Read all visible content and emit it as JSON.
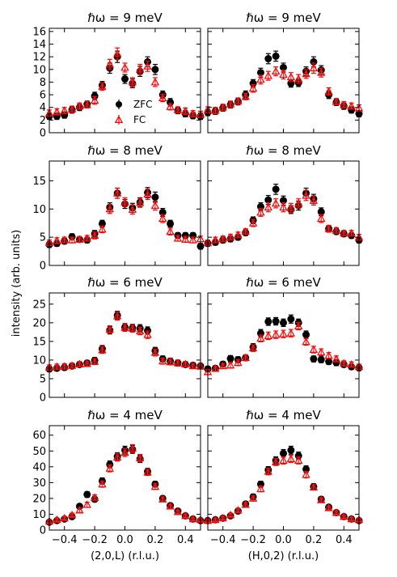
{
  "chart_data": {
    "type": "scatter",
    "ylabel": "intensity (arb. units)",
    "legend": {
      "placement": "center-left (top-left panel)",
      "entries": [
        "ZFC",
        "FC"
      ]
    },
    "colors": {
      "ZFC": "#000000",
      "FC": "#ff0000"
    },
    "x": [
      -0.5,
      -0.45,
      -0.4,
      -0.35,
      -0.3,
      -0.25,
      -0.2,
      -0.15,
      -0.1,
      -0.05,
      0.0,
      0.05,
      0.1,
      0.15,
      0.2,
      0.25,
      0.3,
      0.35,
      0.4,
      0.45,
      0.5
    ],
    "xlim": [
      -0.5,
      0.5
    ],
    "xticks": [
      -0.4,
      -0.2,
      0.0,
      0.2,
      0.4
    ],
    "xticklabels": [
      "−0.4",
      "−0.2",
      "0.0",
      "0.2",
      "0.4"
    ],
    "panels": [
      {
        "id": "9L",
        "title": "ℏω = 9 meV",
        "ylim": [
          0,
          16.5
        ],
        "yticks": [
          0,
          2,
          4,
          6,
          8,
          10,
          12,
          14,
          16
        ],
        "yticklabels": [
          "0",
          "2",
          "4",
          "6",
          "8",
          "10",
          "12",
          "14",
          "16"
        ],
        "show_yticklabels": true,
        "xlabel": "",
        "legend": true,
        "series": [
          {
            "name": "ZFC",
            "values": [
              2.6,
              2.6,
              2.8,
              3.6,
              4.0,
              4.5,
              5.8,
              7.5,
              10.2,
              12.0,
              8.5,
              7.8,
              9.7,
              11.2,
              10.0,
              6.0,
              4.8,
              3.5,
              3.0,
              2.7,
              2.6
            ],
            "err": [
              0.5,
              0.5,
              0.5,
              0.5,
              0.5,
              0.5,
              0.6,
              0.6,
              0.8,
              0.9,
              0.7,
              0.7,
              0.8,
              0.8,
              0.8,
              0.6,
              0.6,
              0.5,
              0.5,
              0.5,
              0.5
            ]
          },
          {
            "name": "FC",
            "values": [
              3.1,
              3.3,
              3.5,
              3.7,
              4.2,
              4.4,
              5.1,
              7.3,
              10.8,
              12.5,
              10.3,
              8.0,
              10.0,
              10.5,
              8.0,
              5.5,
              4.1,
              3.6,
              3.4,
              3.0,
              2.9
            ],
            "err": [
              0.5,
              0.5,
              0.5,
              0.5,
              0.5,
              0.5,
              0.6,
              0.6,
              0.8,
              0.9,
              0.7,
              0.7,
              0.8,
              0.8,
              0.7,
              0.6,
              0.5,
              0.5,
              0.5,
              0.5,
              0.5
            ]
          }
        ]
      },
      {
        "id": "9H",
        "title": "ℏω = 9 meV",
        "ylim": [
          0,
          16.5
        ],
        "yticks": [
          0,
          2,
          4,
          6,
          8,
          10,
          12,
          14,
          16
        ],
        "yticklabels": [],
        "show_yticklabels": false,
        "xlabel": "",
        "legend": false,
        "series": [
          {
            "name": "ZFC",
            "values": [
              3.2,
              3.4,
              3.9,
              4.4,
              4.9,
              6.0,
              7.8,
              9.5,
              11.7,
              12.1,
              10.3,
              7.8,
              7.9,
              9.7,
              11.2,
              9.9,
              6.0,
              4.8,
              4.2,
              3.6,
              3.0
            ],
            "err": [
              0.5,
              0.5,
              0.5,
              0.5,
              0.5,
              0.6,
              0.6,
              0.7,
              0.8,
              0.8,
              0.7,
              0.6,
              0.6,
              0.7,
              0.8,
              0.7,
              0.6,
              0.5,
              0.5,
              0.5,
              0.5
            ]
          },
          {
            "name": "FC",
            "values": [
              3.6,
              3.5,
              4.0,
              4.5,
              5.0,
              5.7,
              7.0,
              8.4,
              9.0,
              9.7,
              9.2,
              8.8,
              8.5,
              9.3,
              10.2,
              9.5,
              6.5,
              4.9,
              4.4,
              4.2,
              3.9
            ],
            "err": [
              0.5,
              0.5,
              0.5,
              0.5,
              0.5,
              0.5,
              0.6,
              0.7,
              0.7,
              0.7,
              0.7,
              0.7,
              0.7,
              0.7,
              0.8,
              0.7,
              0.6,
              0.5,
              0.5,
              0.5,
              0.5
            ]
          }
        ]
      },
      {
        "id": "8L",
        "title": "ℏω = 8 meV",
        "ylim": [
          0,
          18.5
        ],
        "yticks": [
          0,
          5,
          10,
          15
        ],
        "yticklabels": [
          "0",
          "5",
          "10",
          "15"
        ],
        "show_yticklabels": true,
        "xlabel": "",
        "legend": false,
        "series": [
          {
            "name": "ZFC",
            "values": [
              3.7,
              3.9,
              4.3,
              5.1,
              4.6,
              4.5,
              5.6,
              7.4,
              10.3,
              12.8,
              10.9,
              10.2,
              11.2,
              12.9,
              12.1,
              9.4,
              7.4,
              5.3,
              5.3,
              5.3,
              3.4
            ],
            "err": [
              0.5,
              0.5,
              0.5,
              0.5,
              0.5,
              0.5,
              0.6,
              0.6,
              0.8,
              0.9,
              0.8,
              0.8,
              0.8,
              0.9,
              0.9,
              0.7,
              0.6,
              0.5,
              0.5,
              0.5,
              0.5
            ]
          },
          {
            "name": "FC",
            "values": [
              4.0,
              4.4,
              4.5,
              4.5,
              4.6,
              4.8,
              5.3,
              6.4,
              10.0,
              12.8,
              11.2,
              9.9,
              11.1,
              12.6,
              10.6,
              8.3,
              6.0,
              4.8,
              4.6,
              4.5,
              4.7
            ],
            "err": [
              0.5,
              0.5,
              0.5,
              0.5,
              0.5,
              0.5,
              0.6,
              0.6,
              0.8,
              0.9,
              0.8,
              0.8,
              0.8,
              0.9,
              0.8,
              0.7,
              0.6,
              0.5,
              0.5,
              0.5,
              0.5
            ]
          }
        ]
      },
      {
        "id": "8H",
        "title": "ℏω = 8 meV",
        "ylim": [
          0,
          18.5
        ],
        "yticks": [
          0,
          5,
          10,
          15
        ],
        "yticklabels": [],
        "show_yticklabels": false,
        "xlabel": "",
        "legend": false,
        "series": [
          {
            "name": "ZFC",
            "values": [
              3.9,
              4.1,
              4.5,
              4.7,
              5.0,
              5.8,
              8.0,
              10.4,
              11.6,
              13.5,
              11.5,
              9.9,
              10.6,
              12.8,
              11.8,
              9.5,
              6.5,
              6.0,
              5.6,
              5.3,
              4.5
            ],
            "err": [
              0.5,
              0.5,
              0.5,
              0.5,
              0.5,
              0.5,
              0.6,
              0.7,
              0.8,
              0.9,
              0.8,
              0.7,
              0.8,
              0.9,
              0.8,
              0.7,
              0.6,
              0.5,
              0.5,
              0.5,
              0.5
            ]
          },
          {
            "name": "FC",
            "values": [
              4.0,
              4.5,
              4.7,
              5.0,
              5.4,
              6.0,
              7.5,
              9.4,
              10.3,
              11.0,
              10.3,
              10.2,
              11.0,
              12.4,
              11.5,
              8.3,
              6.5,
              6.2,
              5.7,
              5.7,
              5.0
            ],
            "err": [
              0.5,
              0.5,
              0.5,
              0.5,
              0.5,
              0.5,
              0.6,
              0.7,
              0.8,
              0.8,
              0.8,
              0.8,
              0.8,
              0.9,
              0.8,
              0.7,
              0.6,
              0.5,
              0.5,
              0.5,
              0.5
            ]
          }
        ]
      },
      {
        "id": "6L",
        "title": "ℏω = 6 meV",
        "ylim": [
          0,
          28
        ],
        "yticks": [
          0,
          5,
          10,
          15,
          20,
          25
        ],
        "yticklabels": [
          "0",
          "5",
          "10",
          "15",
          "20",
          "25"
        ],
        "show_yticklabels": true,
        "xlabel": "",
        "legend": false,
        "series": [
          {
            "name": "ZFC",
            "values": [
              7.6,
              7.8,
              8.0,
              8.4,
              8.8,
              9.2,
              9.9,
              13.0,
              18.0,
              22.0,
              18.8,
              18.6,
              18.5,
              17.9,
              12.5,
              10.3,
              9.7,
              9.2,
              8.8,
              8.6,
              8.4
            ],
            "err": [
              0.7,
              0.7,
              0.7,
              0.7,
              0.7,
              0.7,
              0.8,
              0.9,
              1.0,
              1.1,
              1.0,
              1.0,
              1.0,
              1.0,
              0.9,
              0.8,
              0.8,
              0.8,
              0.7,
              0.7,
              0.7
            ]
          },
          {
            "name": "FC",
            "values": [
              8.0,
              8.2,
              8.3,
              8.5,
              8.9,
              9.0,
              9.6,
              12.7,
              18.2,
              21.8,
              18.7,
              18.5,
              17.8,
              16.8,
              12.0,
              9.7,
              9.5,
              9.2,
              8.9,
              8.4,
              8.3
            ],
            "err": [
              0.7,
              0.7,
              0.7,
              0.7,
              0.7,
              0.7,
              0.8,
              0.9,
              1.0,
              1.1,
              1.0,
              1.0,
              1.0,
              1.0,
              0.9,
              0.8,
              0.8,
              0.8,
              0.7,
              0.7,
              0.7
            ]
          }
        ]
      },
      {
        "id": "6H",
        "title": "ℏω = 6 meV",
        "ylim": [
          0,
          28
        ],
        "yticks": [
          0,
          5,
          10,
          15,
          20,
          25
        ],
        "yticklabels": [],
        "show_yticklabels": false,
        "xlabel": "",
        "legend": false,
        "series": [
          {
            "name": "ZFC",
            "values": [
              7.6,
              7.8,
              8.9,
              10.4,
              10.1,
              10.6,
              13.5,
              17.2,
              20.3,
              20.4,
              20.0,
              21.0,
              20.0,
              16.8,
              10.3,
              10.1,
              9.6,
              9.3,
              8.8,
              8.2,
              7.9
            ],
            "err": [
              0.7,
              0.7,
              0.7,
              0.8,
              0.8,
              0.8,
              0.9,
              1.0,
              1.0,
              1.0,
              1.0,
              1.1,
              1.0,
              1.0,
              0.8,
              0.8,
              0.8,
              0.8,
              0.7,
              0.7,
              0.7
            ]
          },
          {
            "name": "FC",
            "values": [
              6.8,
              7.7,
              8.4,
              8.6,
              9.3,
              10.6,
              13.2,
              15.8,
              16.5,
              16.8,
              17.0,
              17.2,
              19.1,
              14.9,
              12.8,
              12.1,
              11.2,
              10.3,
              9.1,
              8.8,
              8.2
            ],
            "err": [
              0.7,
              0.7,
              0.7,
              0.7,
              0.8,
              0.8,
              0.9,
              0.9,
              1.0,
              1.0,
              1.0,
              1.0,
              1.0,
              0.9,
              0.9,
              0.9,
              0.8,
              0.8,
              0.7,
              0.7,
              0.7
            ]
          }
        ]
      },
      {
        "id": "4L",
        "title": "ℏω = 4 meV",
        "ylim": [
          0,
          66
        ],
        "yticks": [
          0,
          10,
          20,
          30,
          40,
          50,
          60
        ],
        "yticklabels": [
          "0",
          "10",
          "20",
          "30",
          "40",
          "50",
          "60"
        ],
        "show_yticklabels": true,
        "xlabel": "(2,0,L) (r.l.u.)",
        "legend": false,
        "series": [
          {
            "name": "ZFC",
            "values": [
              5.0,
              6.0,
              7.0,
              8.5,
              15.0,
              22.5,
              19.5,
              31.0,
              41.5,
              46.5,
              50.5,
              51.0,
              45.0,
              37.0,
              29.0,
              20.0,
              15.5,
              12.0,
              9.0,
              7.0,
              6.0
            ],
            "err": [
              1.0,
              1.0,
              1.0,
              1.2,
              1.5,
              1.8,
              1.6,
              2.0,
              2.2,
              2.4,
              2.5,
              2.5,
              2.3,
              2.0,
              1.8,
              1.5,
              1.4,
              1.2,
              1.0,
              1.0,
              1.0
            ]
          },
          {
            "name": "FC",
            "values": [
              5.5,
              6.5,
              7.5,
              9.5,
              12.5,
              16.0,
              20.5,
              29.0,
              39.0,
              46.0,
              49.0,
              51.5,
              45.5,
              36.5,
              27.5,
              19.5,
              15.0,
              11.5,
              9.0,
              7.0,
              6.5
            ],
            "err": [
              1.0,
              1.0,
              1.0,
              1.2,
              1.4,
              1.6,
              1.7,
              1.9,
              2.2,
              2.4,
              2.5,
              2.5,
              2.3,
              2.0,
              1.8,
              1.5,
              1.4,
              1.2,
              1.0,
              1.0,
              1.0
            ]
          }
        ]
      },
      {
        "id": "4H",
        "title": "ℏω = 4 meV",
        "ylim": [
          0,
          66
        ],
        "yticks": [
          0,
          10,
          20,
          30,
          40,
          50,
          60
        ],
        "yticklabels": [],
        "show_yticklabels": false,
        "xlabel": "(H,0,2) (r.l.u.)",
        "legend": false,
        "series": [
          {
            "name": "ZFC",
            "values": [
              6.0,
              6.5,
              7.5,
              9.0,
              12.0,
              16.5,
              21.0,
              29.0,
              38.0,
              44.0,
              48.5,
              50.5,
              47.0,
              38.5,
              27.5,
              19.5,
              14.5,
              11.0,
              8.5,
              7.0,
              6.0
            ],
            "err": [
              1.0,
              1.0,
              1.0,
              1.1,
              1.3,
              1.5,
              1.7,
              1.9,
              2.1,
              2.3,
              2.4,
              2.5,
              2.3,
              2.1,
              1.8,
              1.5,
              1.3,
              1.1,
              1.0,
              1.0,
              1.0
            ]
          },
          {
            "name": "FC",
            "values": [
              6.0,
              6.5,
              7.5,
              9.5,
              12.5,
              16.0,
              20.0,
              26.0,
              37.0,
              43.0,
              44.0,
              45.0,
              44.0,
              35.0,
              27.0,
              19.0,
              14.0,
              11.0,
              8.5,
              7.0,
              6.5
            ],
            "err": [
              1.0,
              1.0,
              1.0,
              1.1,
              1.3,
              1.5,
              1.6,
              1.8,
              2.1,
              2.2,
              2.3,
              2.3,
              2.2,
              2.0,
              1.7,
              1.5,
              1.3,
              1.1,
              1.0,
              1.0,
              1.0
            ]
          }
        ]
      }
    ]
  }
}
